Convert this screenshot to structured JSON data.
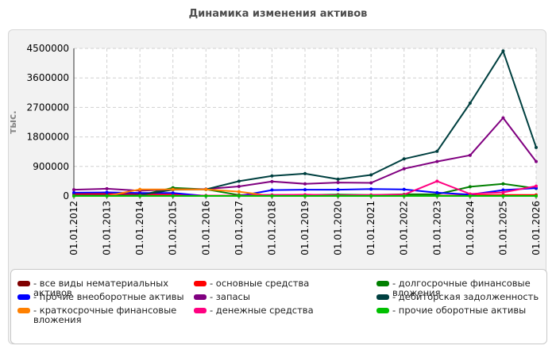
{
  "chart_data": {
    "type": "line",
    "title": "Динамика изменения активов",
    "ylabel": "тыс.",
    "xlabel": "",
    "x": [
      "01.01.2012",
      "01.01.2013",
      "01.01.2014",
      "01.01.2015",
      "01.01.2016",
      "01.01.2017",
      "01.01.2018",
      "01.01.2019",
      "01.01.2020",
      "01.01.2021",
      "01.01.2022",
      "01.01.2023",
      "01.01.2024",
      "01.01.2025",
      "01.01.2026"
    ],
    "ylim": [
      0,
      4500000
    ],
    "yticks": [
      "4500000",
      "3600000",
      "2700000",
      "1800000",
      "900000",
      "0"
    ],
    "grid": true,
    "legend_position": "bottom",
    "series": [
      {
        "name": "- все виды нематериальных\nактивов",
        "color": "#800000",
        "values": [
          0,
          0,
          0,
          0,
          0,
          0,
          0,
          0,
          0,
          0,
          0,
          0,
          0,
          0,
          0
        ]
      },
      {
        "name": "- основные средства",
        "color": "#ff0000",
        "values": [
          60000,
          60000,
          50000,
          40000,
          10000,
          10000,
          10000,
          10000,
          10000,
          10000,
          10000,
          10000,
          20000,
          30000,
          30000
        ]
      },
      {
        "name": "- долгосрочные финансовые\nвложения",
        "color": "#008000",
        "values": [
          20000,
          20000,
          20000,
          250000,
          200000,
          30000,
          30000,
          30000,
          40000,
          30000,
          50000,
          50000,
          280000,
          370000,
          230000
        ]
      },
      {
        "name": "- прочие внеоборотные активы",
        "color": "#0000ff",
        "values": [
          100000,
          110000,
          90000,
          90000,
          0,
          0,
          180000,
          190000,
          190000,
          210000,
          200000,
          100000,
          40000,
          180000,
          240000
        ]
      },
      {
        "name": "- запасы",
        "color": "#800080",
        "values": [
          190000,
          220000,
          160000,
          200000,
          210000,
          290000,
          440000,
          370000,
          410000,
          400000,
          830000,
          1050000,
          1240000,
          2380000,
          1050000
        ]
      },
      {
        "name": "- дебиторская задолженность",
        "color": "#004040",
        "values": [
          20000,
          20000,
          30000,
          190000,
          200000,
          450000,
          610000,
          680000,
          510000,
          640000,
          1130000,
          1360000,
          2830000,
          4420000,
          1480000
        ]
      },
      {
        "name": "- краткосрочные финансовые\nвложения",
        "color": "#ff8000",
        "values": [
          0,
          0,
          200000,
          200000,
          200000,
          130000,
          0,
          0,
          0,
          0,
          0,
          0,
          0,
          0,
          0
        ]
      },
      {
        "name": "- денежные средства",
        "color": "#ff0080",
        "values": [
          10000,
          10000,
          10000,
          10000,
          10000,
          10000,
          30000,
          40000,
          20000,
          30000,
          40000,
          450000,
          60000,
          110000,
          300000
        ]
      },
      {
        "name": "- прочие оборотные активы",
        "color": "#00c000",
        "values": [
          0,
          0,
          0,
          0,
          0,
          0,
          0,
          0,
          0,
          0,
          0,
          0,
          0,
          0,
          0
        ]
      }
    ]
  },
  "legend_order": [
    0,
    3,
    6,
    1,
    4,
    7,
    2,
    5,
    8
  ]
}
